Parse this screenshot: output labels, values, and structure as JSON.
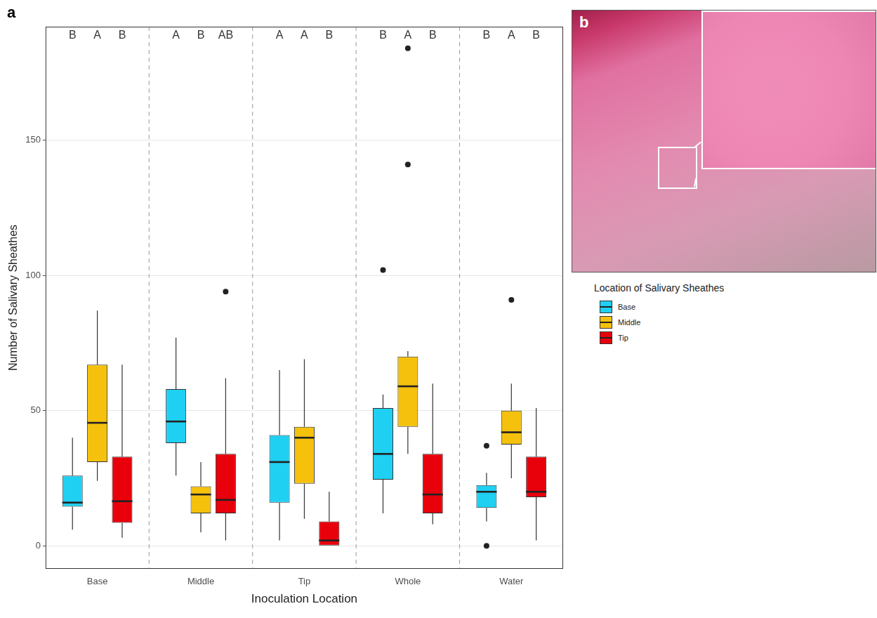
{
  "chart_data": {
    "type": "boxplot",
    "panel_label": "a",
    "x_label": "Inoculation Location",
    "y_label": "Number of Salivary Sheathes",
    "categories": [
      "Base",
      "Middle",
      "Tip",
      "Whole",
      "Water"
    ],
    "ylim": [
      -8.5,
      192
    ],
    "yticks": [
      0,
      50,
      100,
      150
    ],
    "grid": true,
    "legend": "right",
    "legend_title": "Location of Salivary Sheathes",
    "series": [
      {
        "name": "Base",
        "color": "#1fd0f3",
        "letters": [
          "B",
          "A",
          "A",
          "B",
          "B"
        ],
        "boxes": [
          {
            "min": 6,
            "q1": 14.5,
            "median": 16,
            "q3": 26,
            "max": 40,
            "outliers": []
          },
          {
            "min": 26,
            "q1": 38,
            "median": 46,
            "q3": 58,
            "max": 77,
            "outliers": []
          },
          {
            "min": 2,
            "q1": 16,
            "median": 31,
            "q3": 41,
            "max": 65,
            "outliers": []
          },
          {
            "min": 12,
            "q1": 24.5,
            "median": 34,
            "q3": 51,
            "max": 56,
            "outliers": [
              102
            ]
          },
          {
            "min": 9,
            "q1": 14,
            "median": 20,
            "q3": 22.5,
            "max": 27,
            "outliers": [
              37,
              0
            ]
          }
        ]
      },
      {
        "name": "Middle",
        "color": "#f5c10d",
        "letters": [
          "A",
          "B",
          "A",
          "A",
          "A"
        ],
        "boxes": [
          {
            "min": 24,
            "q1": 31,
            "median": 45.5,
            "q3": 67,
            "max": 87,
            "outliers": []
          },
          {
            "min": 5,
            "q1": 12,
            "median": 19,
            "q3": 22,
            "max": 31,
            "outliers": []
          },
          {
            "min": 10,
            "q1": 23,
            "median": 40,
            "q3": 44,
            "max": 69,
            "outliers": []
          },
          {
            "min": 34,
            "q1": 44,
            "median": 59,
            "q3": 70,
            "max": 72,
            "outliers": [
              141,
              184
            ]
          },
          {
            "min": 25,
            "q1": 37.5,
            "median": 42,
            "q3": 50,
            "max": 60,
            "outliers": [
              91
            ]
          }
        ]
      },
      {
        "name": "Tip",
        "color": "#e8000b",
        "letters": [
          "B",
          "AB",
          "B",
          "B",
          "B"
        ],
        "boxes": [
          {
            "min": 3,
            "q1": 8.5,
            "median": 16.5,
            "q3": 33,
            "max": 67,
            "outliers": []
          },
          {
            "min": 2,
            "q1": 12,
            "median": 17,
            "q3": 34,
            "max": 62,
            "outliers": [
              94
            ]
          },
          {
            "min": 0,
            "q1": 0,
            "median": 2,
            "q3": 9,
            "max": 20,
            "outliers": []
          },
          {
            "min": 8,
            "q1": 12,
            "median": 19,
            "q3": 34,
            "max": 60,
            "outliers": []
          },
          {
            "min": 2,
            "q1": 18,
            "median": 20,
            "q3": 33,
            "max": 51,
            "outliers": []
          }
        ]
      }
    ]
  },
  "panel_b": {
    "label": "b"
  }
}
